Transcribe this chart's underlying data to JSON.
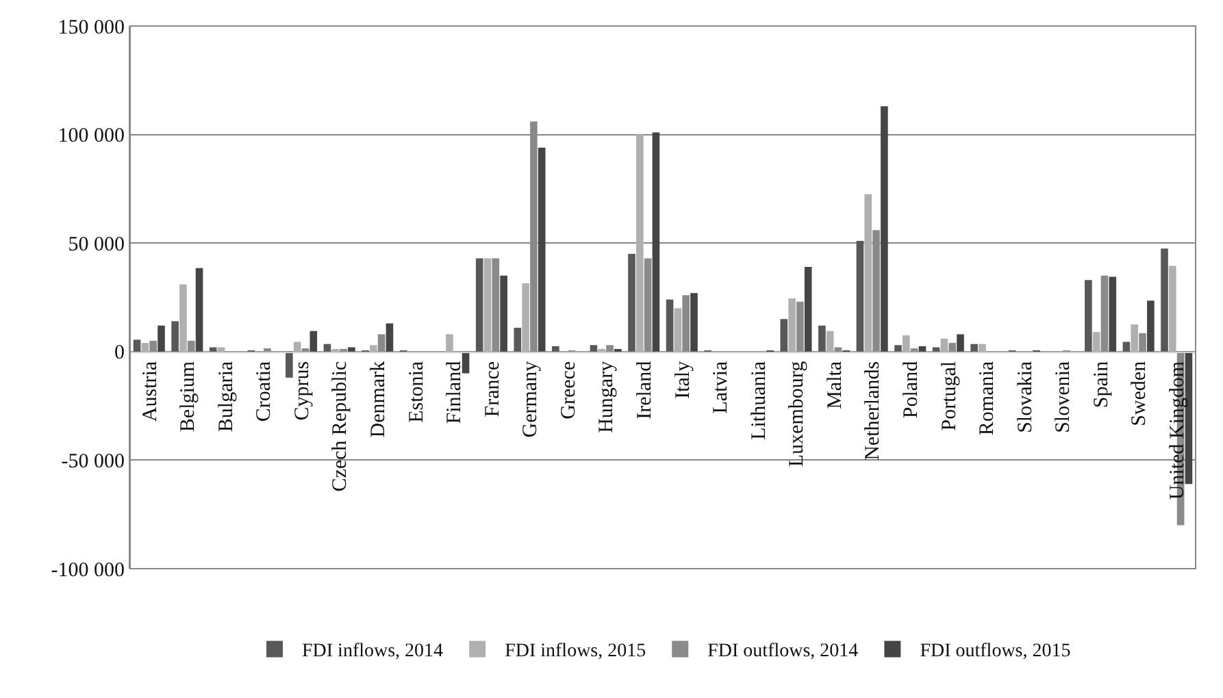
{
  "chart_data": {
    "type": "bar",
    "categories": [
      "Austria",
      "Belgium",
      "Bulgaria",
      "Croatia",
      "Cyprus",
      "Czech Republic",
      "Denmark",
      "Estonia",
      "Finland",
      "France",
      "Germany",
      "Greece",
      "Hungary",
      "Ireland",
      "Italy",
      "Latvia",
      "Lithuania",
      "Luxembourg",
      "Malta",
      "Netherlands",
      "Poland",
      "Portugal",
      "Romania",
      "Slovakia",
      "Slovenia",
      "Spain",
      "Sweden",
      "United Kingdom"
    ],
    "series": [
      {
        "name": "FDI inflows, 2014",
        "color": "#585858",
        "values": [
          5500,
          14000,
          2000,
          500,
          -12000,
          3500,
          500,
          500,
          0,
          43000,
          11000,
          2500,
          3000,
          45000,
          24000,
          500,
          0,
          15000,
          12000,
          51000,
          3000,
          2000,
          3500,
          -300,
          0,
          33000,
          4500,
          47500
        ]
      },
      {
        "name": "FDI inflows, 2015",
        "color": "#b0b0b0",
        "values": [
          4000,
          31000,
          2000,
          0,
          4500,
          1000,
          3000,
          0,
          8000,
          43000,
          31500,
          0,
          1000,
          100000,
          20000,
          0,
          0,
          24500,
          9500,
          72500,
          7500,
          6000,
          3500,
          0,
          0,
          9000,
          12500,
          39500
        ]
      },
      {
        "name": "FDI outflows, 2014",
        "color": "#8a8a8a",
        "values": [
          5000,
          5000,
          0,
          1500,
          1500,
          1000,
          8000,
          0,
          0,
          43000,
          106000,
          500,
          3000,
          43000,
          26000,
          0,
          0,
          23000,
          2000,
          56000,
          1500,
          4000,
          0,
          0,
          -300,
          35000,
          8500,
          -80000
        ]
      },
      {
        "name": "FDI outflows, 2015",
        "color": "#454545",
        "values": [
          12000,
          38500,
          0,
          0,
          9500,
          2000,
          13000,
          0,
          -10000,
          35000,
          94000,
          0,
          1000,
          101000,
          27000,
          0,
          -500,
          39000,
          -500,
          113000,
          2500,
          8000,
          0,
          -300,
          0,
          34500,
          23500,
          -61000
        ]
      }
    ],
    "ylim": [
      -100000,
      150000
    ],
    "yticks": [
      {
        "value": -100000,
        "label": "-100 000"
      },
      {
        "value": -50000,
        "label": "-50 000"
      },
      {
        "value": 0,
        "label": "0"
      },
      {
        "value": 50000,
        "label": "50 000"
      },
      {
        "value": 100000,
        "label": "100 000"
      },
      {
        "value": 150000,
        "label": "150 000"
      }
    ],
    "grid": "y",
    "legend": "bottom"
  }
}
